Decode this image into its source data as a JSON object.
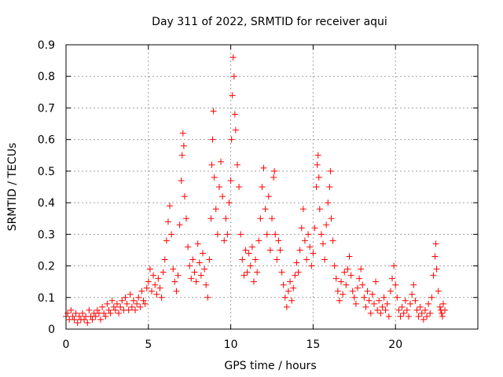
{
  "chart_data": {
    "type": "scatter",
    "title": "Day 311 of 2022, SRMTID for receiver aqui",
    "xlabel": "GPS time / hours",
    "ylabel": "SRMTID / TECUs",
    "xlim": [
      0,
      25
    ],
    "ylim": [
      0,
      0.9
    ],
    "xticks": [
      0,
      5,
      10,
      15,
      20
    ],
    "yticks": [
      0,
      0.1,
      0.2,
      0.3,
      0.4,
      0.5,
      0.6,
      0.7,
      0.8,
      0.9
    ],
    "xtick_labels": [
      "0",
      "5",
      "10",
      "15",
      "20"
    ],
    "ytick_labels": [
      "0",
      "0.1",
      "0.2",
      "0.3",
      "0.4",
      "0.5",
      "0.6",
      "0.7",
      "0.8",
      "0.9"
    ],
    "grid": true,
    "marker": "+",
    "color": "#ff0000",
    "series": [
      {
        "name": "SRMTID",
        "points": [
          [
            0.0,
            0.04
          ],
          [
            0.1,
            0.05
          ],
          [
            0.2,
            0.03
          ],
          [
            0.3,
            0.06
          ],
          [
            0.4,
            0.04
          ],
          [
            0.5,
            0.03
          ],
          [
            0.6,
            0.05
          ],
          [
            0.7,
            0.02
          ],
          [
            0.8,
            0.04
          ],
          [
            0.9,
            0.03
          ],
          [
            1.0,
            0.05
          ],
          [
            1.1,
            0.03
          ],
          [
            1.2,
            0.04
          ],
          [
            1.3,
            0.02
          ],
          [
            1.4,
            0.06
          ],
          [
            1.5,
            0.04
          ],
          [
            1.6,
            0.03
          ],
          [
            1.7,
            0.05
          ],
          [
            1.8,
            0.04
          ],
          [
            1.9,
            0.06
          ],
          [
            2.0,
            0.05
          ],
          [
            2.1,
            0.03
          ],
          [
            2.2,
            0.07
          ],
          [
            2.3,
            0.05
          ],
          [
            2.4,
            0.04
          ],
          [
            2.5,
            0.08
          ],
          [
            2.6,
            0.06
          ],
          [
            2.7,
            0.05
          ],
          [
            2.8,
            0.09
          ],
          [
            2.9,
            0.07
          ],
          [
            3.0,
            0.06
          ],
          [
            3.1,
            0.08
          ],
          [
            3.2,
            0.05
          ],
          [
            3.3,
            0.07
          ],
          [
            3.4,
            0.09
          ],
          [
            3.5,
            0.06
          ],
          [
            3.6,
            0.1
          ],
          [
            3.7,
            0.08
          ],
          [
            3.8,
            0.06
          ],
          [
            3.9,
            0.11
          ],
          [
            4.0,
            0.07
          ],
          [
            4.1,
            0.09
          ],
          [
            4.2,
            0.06
          ],
          [
            4.3,
            0.08
          ],
          [
            4.4,
            0.1
          ],
          [
            4.5,
            0.07
          ],
          [
            4.6,
            0.12
          ],
          [
            4.7,
            0.09
          ],
          [
            4.8,
            0.08
          ],
          [
            4.9,
            0.13
          ],
          [
            5.0,
            0.15
          ],
          [
            5.1,
            0.19
          ],
          [
            5.2,
            0.12
          ],
          [
            5.3,
            0.17
          ],
          [
            5.4,
            0.14
          ],
          [
            5.5,
            0.11
          ],
          [
            5.6,
            0.16
          ],
          [
            5.7,
            0.13
          ],
          [
            5.8,
            0.1
          ],
          [
            5.9,
            0.18
          ],
          [
            6.0,
            0.22
          ],
          [
            6.1,
            0.28
          ],
          [
            6.2,
            0.34
          ],
          [
            6.3,
            0.39
          ],
          [
            6.4,
            0.3
          ],
          [
            6.5,
            0.19
          ],
          [
            6.6,
            0.15
          ],
          [
            6.7,
            0.12
          ],
          [
            6.8,
            0.17
          ],
          [
            6.9,
            0.33
          ],
          [
            7.0,
            0.47
          ],
          [
            7.05,
            0.55
          ],
          [
            7.1,
            0.62
          ],
          [
            7.15,
            0.58
          ],
          [
            7.2,
            0.42
          ],
          [
            7.3,
            0.35
          ],
          [
            7.4,
            0.26
          ],
          [
            7.5,
            0.2
          ],
          [
            7.6,
            0.16
          ],
          [
            7.7,
            0.22
          ],
          [
            7.8,
            0.18
          ],
          [
            7.9,
            0.15
          ],
          [
            8.0,
            0.27
          ],
          [
            8.1,
            0.21
          ],
          [
            8.2,
            0.17
          ],
          [
            8.3,
            0.24
          ],
          [
            8.4,
            0.19
          ],
          [
            8.5,
            0.14
          ],
          [
            8.6,
            0.1
          ],
          [
            8.7,
            0.22
          ],
          [
            8.8,
            0.35
          ],
          [
            8.85,
            0.52
          ],
          [
            8.9,
            0.6
          ],
          [
            8.95,
            0.69
          ],
          [
            9.0,
            0.48
          ],
          [
            9.1,
            0.38
          ],
          [
            9.2,
            0.3
          ],
          [
            9.3,
            0.45
          ],
          [
            9.4,
            0.53
          ],
          [
            9.5,
            0.42
          ],
          [
            9.6,
            0.28
          ],
          [
            9.7,
            0.35
          ],
          [
            9.8,
            0.3
          ],
          [
            9.9,
            0.4
          ],
          [
            10.0,
            0.47
          ],
          [
            10.05,
            0.6
          ],
          [
            10.1,
            0.74
          ],
          [
            10.15,
            0.86
          ],
          [
            10.2,
            0.8
          ],
          [
            10.25,
            0.68
          ],
          [
            10.3,
            0.63
          ],
          [
            10.4,
            0.52
          ],
          [
            10.5,
            0.45
          ],
          [
            10.6,
            0.3
          ],
          [
            10.7,
            0.22
          ],
          [
            10.8,
            0.17
          ],
          [
            10.9,
            0.25
          ],
          [
            11.0,
            0.18
          ],
          [
            11.1,
            0.24
          ],
          [
            11.2,
            0.2
          ],
          [
            11.3,
            0.26
          ],
          [
            11.4,
            0.15
          ],
          [
            11.5,
            0.22
          ],
          [
            11.6,
            0.18
          ],
          [
            11.7,
            0.28
          ],
          [
            11.8,
            0.35
          ],
          [
            11.9,
            0.45
          ],
          [
            12.0,
            0.51
          ],
          [
            12.1,
            0.38
          ],
          [
            12.2,
            0.3
          ],
          [
            12.3,
            0.42
          ],
          [
            12.4,
            0.25
          ],
          [
            12.5,
            0.35
          ],
          [
            12.6,
            0.48
          ],
          [
            12.65,
            0.5
          ],
          [
            12.7,
            0.3
          ],
          [
            12.8,
            0.22
          ],
          [
            12.9,
            0.28
          ],
          [
            13.0,
            0.25
          ],
          [
            13.1,
            0.18
          ],
          [
            13.2,
            0.14
          ],
          [
            13.3,
            0.1
          ],
          [
            13.4,
            0.07
          ],
          [
            13.5,
            0.12
          ],
          [
            13.6,
            0.15
          ],
          [
            13.7,
            0.09
          ],
          [
            13.8,
            0.13
          ],
          [
            13.9,
            0.17
          ],
          [
            14.0,
            0.21
          ],
          [
            14.1,
            0.18
          ],
          [
            14.2,
            0.25
          ],
          [
            14.3,
            0.32
          ],
          [
            14.4,
            0.38
          ],
          [
            14.5,
            0.28
          ],
          [
            14.6,
            0.22
          ],
          [
            14.7,
            0.3
          ],
          [
            14.8,
            0.26
          ],
          [
            14.9,
            0.2
          ],
          [
            15.0,
            0.24
          ],
          [
            15.1,
            0.32
          ],
          [
            15.2,
            0.45
          ],
          [
            15.25,
            0.52
          ],
          [
            15.3,
            0.55
          ],
          [
            15.35,
            0.48
          ],
          [
            15.4,
            0.38
          ],
          [
            15.5,
            0.3
          ],
          [
            15.6,
            0.27
          ],
          [
            15.7,
            0.22
          ],
          [
            15.8,
            0.33
          ],
          [
            15.9,
            0.4
          ],
          [
            16.0,
            0.45
          ],
          [
            16.05,
            0.5
          ],
          [
            16.1,
            0.35
          ],
          [
            16.2,
            0.28
          ],
          [
            16.3,
            0.2
          ],
          [
            16.4,
            0.16
          ],
          [
            16.5,
            0.12
          ],
          [
            16.6,
            0.09
          ],
          [
            16.7,
            0.15
          ],
          [
            16.8,
            0.11
          ],
          [
            16.9,
            0.18
          ],
          [
            17.0,
            0.14
          ],
          [
            17.1,
            0.19
          ],
          [
            17.2,
            0.23
          ],
          [
            17.3,
            0.17
          ],
          [
            17.4,
            0.12
          ],
          [
            17.5,
            0.1
          ],
          [
            17.6,
            0.08
          ],
          [
            17.7,
            0.13
          ],
          [
            17.8,
            0.16
          ],
          [
            17.9,
            0.19
          ],
          [
            18.0,
            0.14
          ],
          [
            18.1,
            0.1
          ],
          [
            18.2,
            0.07
          ],
          [
            18.3,
            0.12
          ],
          [
            18.4,
            0.09
          ],
          [
            18.5,
            0.05
          ],
          [
            18.6,
            0.11
          ],
          [
            18.7,
            0.08
          ],
          [
            18.8,
            0.15
          ],
          [
            18.9,
            0.06
          ],
          [
            19.0,
            0.09
          ],
          [
            19.1,
            0.05
          ],
          [
            19.2,
            0.07
          ],
          [
            19.3,
            0.1
          ],
          [
            19.4,
            0.06
          ],
          [
            19.5,
            0.08
          ],
          [
            19.6,
            0.04
          ],
          [
            19.7,
            0.12
          ],
          [
            19.8,
            0.16
          ],
          [
            19.9,
            0.2
          ],
          [
            20.0,
            0.14
          ],
          [
            20.1,
            0.1
          ],
          [
            20.2,
            0.06
          ],
          [
            20.3,
            0.04
          ],
          [
            20.4,
            0.07
          ],
          [
            20.5,
            0.05
          ],
          [
            20.6,
            0.09
          ],
          [
            20.7,
            0.06
          ],
          [
            20.8,
            0.04
          ],
          [
            20.9,
            0.08
          ],
          [
            21.0,
            0.11
          ],
          [
            21.1,
            0.14
          ],
          [
            21.2,
            0.09
          ],
          [
            21.3,
            0.06
          ],
          [
            21.4,
            0.04
          ],
          [
            21.5,
            0.07
          ],
          [
            21.6,
            0.05
          ],
          [
            21.7,
            0.03
          ],
          [
            21.8,
            0.06
          ],
          [
            21.9,
            0.04
          ],
          [
            22.0,
            0.08
          ],
          [
            22.1,
            0.05
          ],
          [
            22.2,
            0.1
          ],
          [
            22.3,
            0.17
          ],
          [
            22.4,
            0.23
          ],
          [
            22.45,
            0.27
          ],
          [
            22.5,
            0.19
          ],
          [
            22.6,
            0.12
          ],
          [
            22.7,
            0.07
          ],
          [
            22.8,
            0.05
          ],
          [
            22.9,
            0.08
          ],
          [
            23.0,
            0.06
          ],
          [
            22.85,
            0.04
          ],
          [
            22.75,
            0.06
          ]
        ]
      }
    ]
  }
}
